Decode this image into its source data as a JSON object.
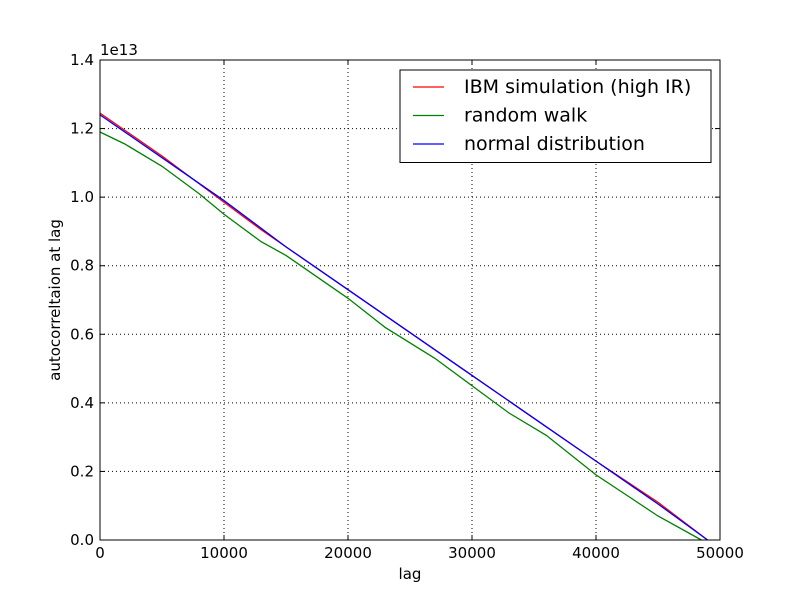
{
  "chart_data": {
    "type": "line",
    "xlabel": "lag",
    "ylabel": "autocorreltaion at lag",
    "offset_label": "1e13",
    "xlim": [
      0,
      50000
    ],
    "ylim": [
      0,
      1.4
    ],
    "x_ticks": [
      0,
      10000,
      20000,
      30000,
      40000,
      50000
    ],
    "x_tick_labels": [
      "0",
      "10000",
      "20000",
      "30000",
      "40000",
      "50000"
    ],
    "y_ticks": [
      0,
      0.2,
      0.4,
      0.6,
      0.8,
      1.0,
      1.2,
      1.4
    ],
    "y_tick_labels": [
      "0.0",
      "0.2",
      "0.4",
      "0.6",
      "0.8",
      "1.0",
      "1.2",
      "1.4"
    ],
    "grid": true,
    "legend_position": "top-right",
    "series": [
      {
        "name": "IBM simulation (high IR)",
        "color": "#ff0000",
        "x": [
          0,
          5000,
          10000,
          13000,
          15000,
          20000,
          25000,
          30000,
          35000,
          40000,
          45000,
          49000
        ],
        "y": [
          1.245,
          1.12,
          0.985,
          0.905,
          0.855,
          0.73,
          0.605,
          0.48,
          0.355,
          0.23,
          0.11,
          0.0
        ]
      },
      {
        "name": "random walk",
        "color": "#008000",
        "x": [
          0,
          2000,
          5000,
          8000,
          10000,
          13000,
          15000,
          20000,
          23000,
          27000,
          30000,
          33000,
          36000,
          40000,
          45000,
          48500
        ],
        "y": [
          1.19,
          1.155,
          1.09,
          1.01,
          0.95,
          0.87,
          0.83,
          0.705,
          0.62,
          0.53,
          0.45,
          0.37,
          0.305,
          0.19,
          0.07,
          0.0
        ]
      },
      {
        "name": "normal distribution",
        "color": "#0000ff",
        "x": [
          0,
          5000,
          10000,
          15000,
          20000,
          25000,
          30000,
          35000,
          40000,
          45000,
          49000
        ],
        "y": [
          1.24,
          1.115,
          0.99,
          0.855,
          0.73,
          0.605,
          0.48,
          0.355,
          0.23,
          0.105,
          0.0
        ]
      }
    ]
  }
}
